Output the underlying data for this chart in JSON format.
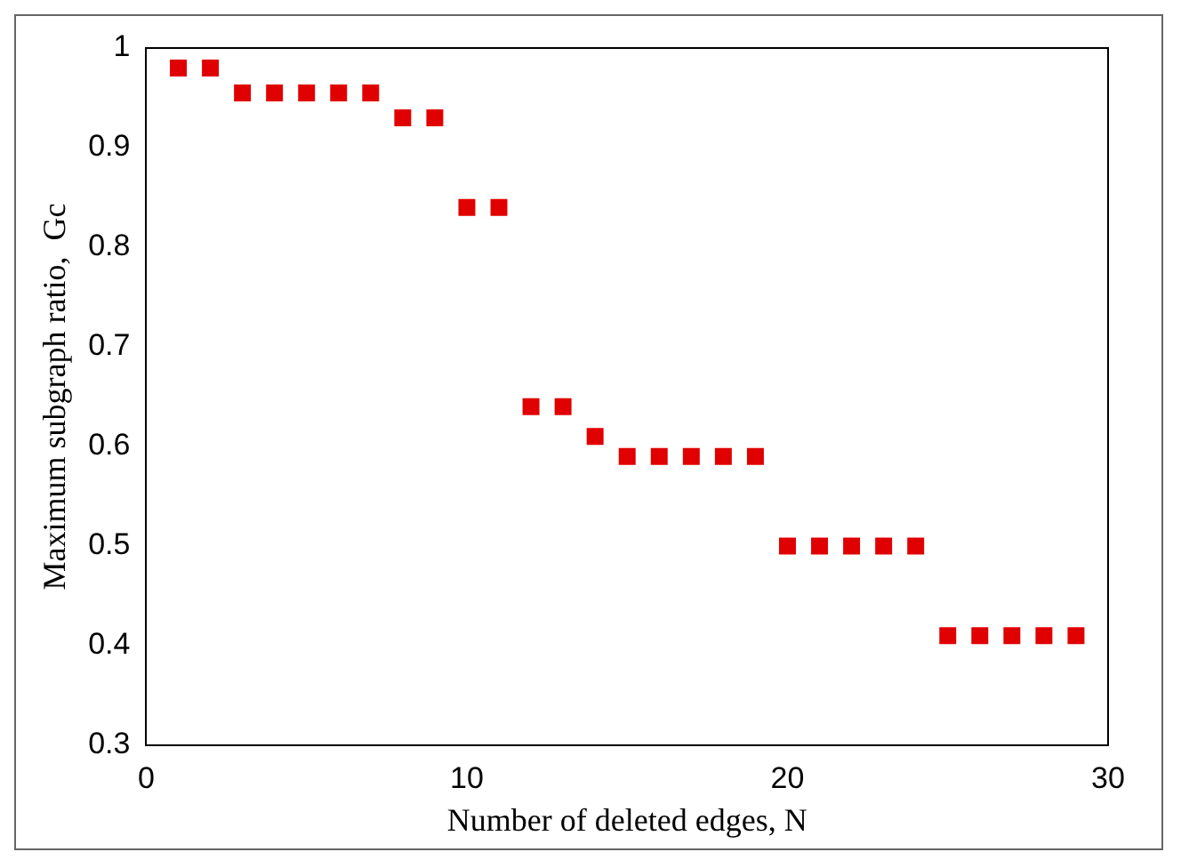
{
  "chart_data": {
    "type": "scatter",
    "xlabel": "Number of deleted edges, N",
    "ylabel": "Maximum subgraph ratio,  Gc",
    "x": [
      1,
      2,
      3,
      4,
      5,
      6,
      7,
      8,
      9,
      10,
      11,
      12,
      13,
      14,
      15,
      16,
      17,
      18,
      19,
      20,
      21,
      22,
      23,
      24,
      25,
      26,
      27,
      28,
      29
    ],
    "series": [
      {
        "color": "#e00000",
        "values": [
          0.98,
          0.98,
          0.955,
          0.955,
          0.955,
          0.955,
          0.955,
          0.93,
          0.93,
          0.84,
          0.84,
          0.64,
          0.64,
          0.61,
          0.59,
          0.59,
          0.59,
          0.59,
          0.59,
          0.5,
          0.5,
          0.5,
          0.5,
          0.5,
          0.41,
          0.41,
          0.41,
          0.41,
          0.41
        ]
      }
    ],
    "xlim": [
      0,
      30
    ],
    "xticks": [
      0,
      10,
      20,
      30
    ],
    "ylim": [
      0.3,
      1
    ],
    "yticks": [
      0.3,
      0.4,
      0.5,
      0.6,
      0.7,
      0.8,
      0.9,
      1
    ],
    "marker": "square",
    "grid": false,
    "legend": false
  }
}
